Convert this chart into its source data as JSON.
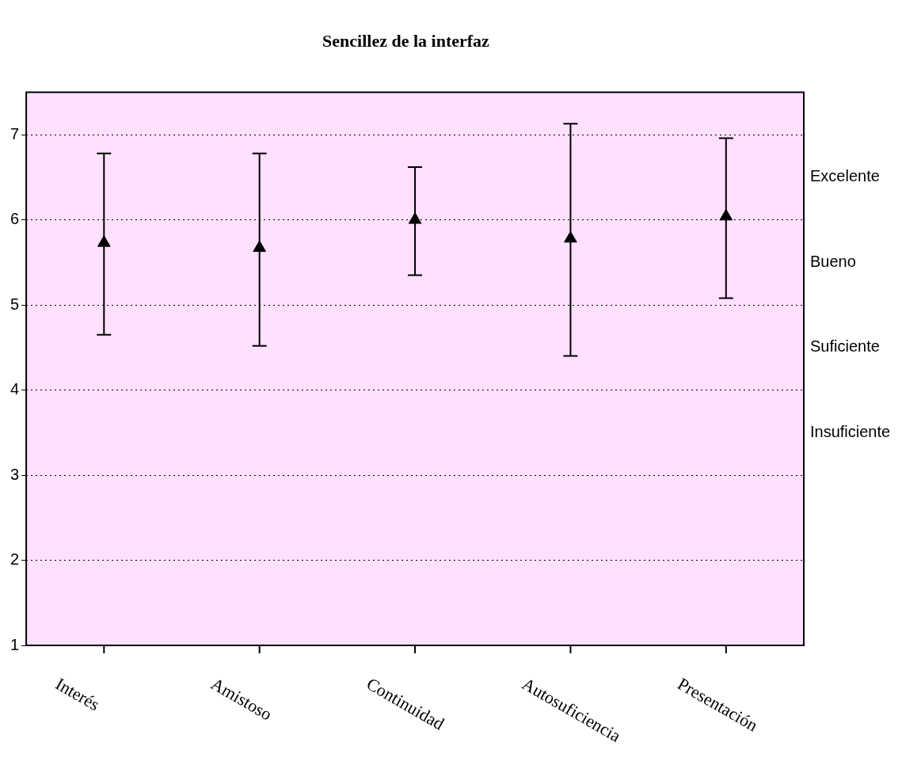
{
  "chart_data": {
    "type": "scatter",
    "title": "Sencillez de la interfaz",
    "categories": [
      "Interés",
      "Amistoso",
      "Continuidad",
      "Autosuficiencia",
      "Presentación"
    ],
    "series": [
      {
        "color": "#000000",
        "values": [
          5.73,
          5.67,
          6.0,
          5.78,
          6.04
        ],
        "errors": [
          [
            4.65,
            6.78
          ],
          [
            4.52,
            6.78
          ],
          [
            5.35,
            6.62
          ],
          [
            4.4,
            7.13
          ],
          [
            5.08,
            6.96
          ]
        ]
      }
    ],
    "ylim": [
      1,
      7.5
    ],
    "yticks": [
      1,
      2,
      3,
      4,
      5,
      6,
      7
    ],
    "grid": "y",
    "legend": false,
    "marker": "triangle",
    "annotations": [
      "Excelente",
      "Bueno",
      "Suficiente",
      "Insuficiente"
    ]
  }
}
